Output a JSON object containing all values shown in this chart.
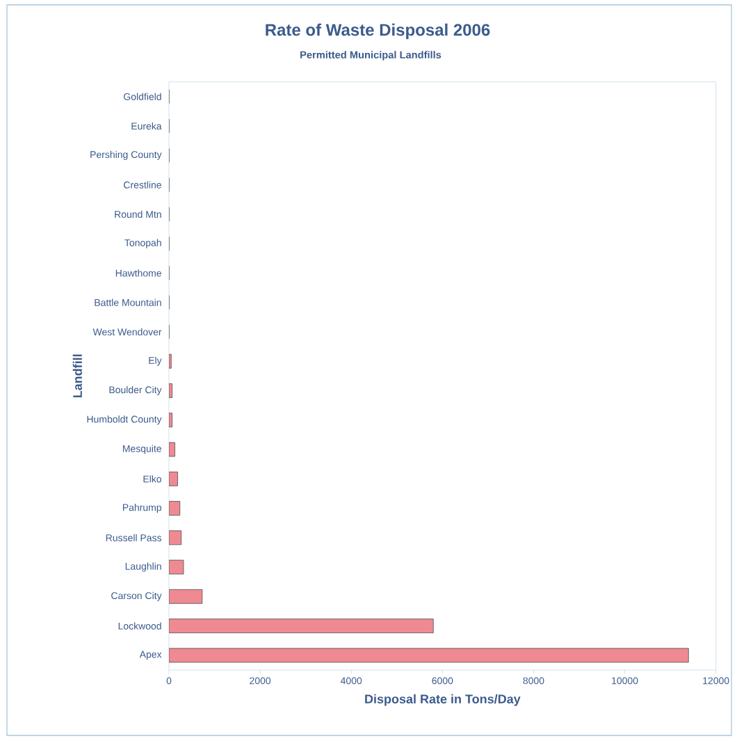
{
  "chart_data": {
    "type": "bar",
    "orientation": "horizontal",
    "title": "Rate of Waste Disposal 2006",
    "subtitle": "Permitted Municipal Landfills",
    "xlabel": "Disposal Rate in Tons/Day",
    "ylabel": "Landfill",
    "categories": [
      "Goldfield",
      "Eureka",
      "Pershing County",
      "Crestline",
      "Round Mtn",
      "Tonopah",
      "Hawthome",
      "Battle Mountain",
      "West Wendover",
      "Ely",
      "Boulder City",
      "Humboldt County",
      "Mesquite",
      "Elko",
      "Pahrump",
      "Russell Pass",
      "Laughlin",
      "Carson City",
      "Lockwood",
      "Apex"
    ],
    "values": [
      0,
      0,
      0,
      0,
      0,
      0,
      0,
      0,
      0,
      50,
      70,
      70,
      130,
      190,
      240,
      270,
      320,
      730,
      5800,
      11400
    ],
    "color": "#ef8a92",
    "xlim": [
      0,
      12000
    ],
    "xticks": [
      0,
      2000,
      4000,
      6000,
      8000,
      10000,
      12000
    ]
  }
}
